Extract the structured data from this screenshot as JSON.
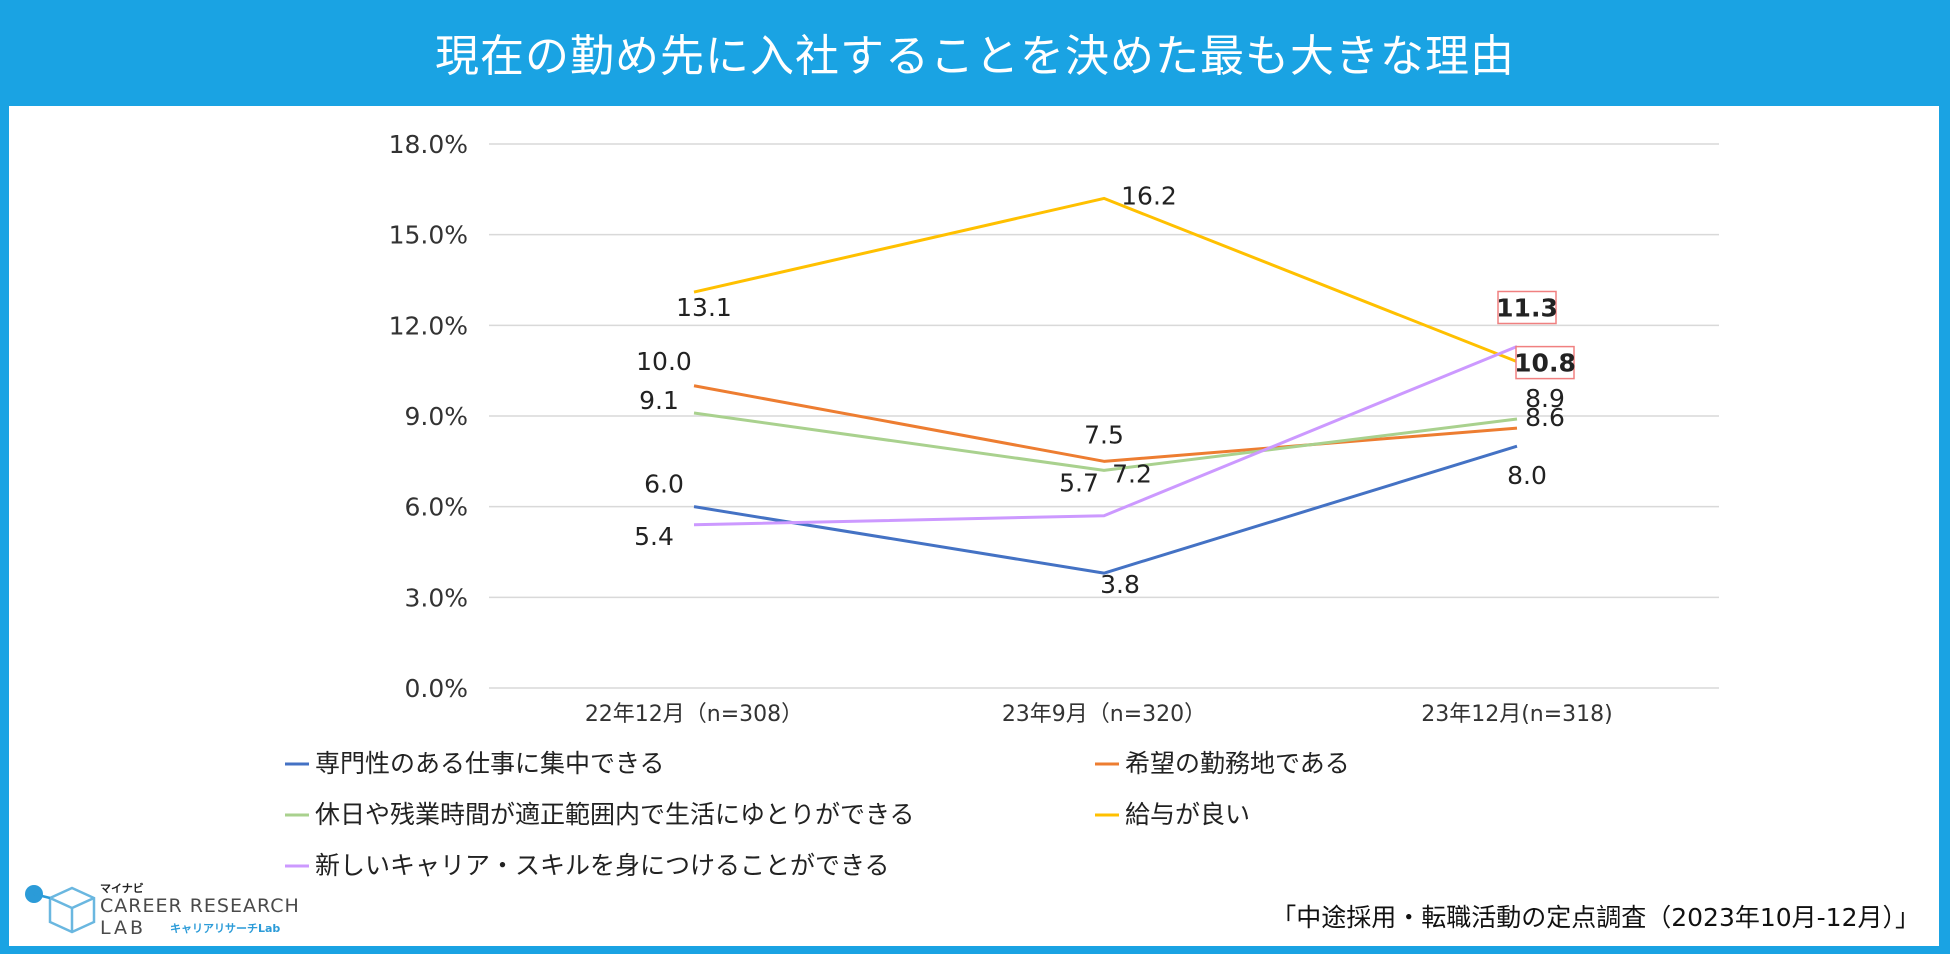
{
  "title": "現在の勤め先に入社することを決めた最も大きな理由",
  "source": "「中途採用・転職活動の定点調査（2023年10月-12月）」",
  "logo": {
    "top": "マイナビ",
    "line1": "CAREER RESEARCH",
    "line2": "LAB",
    "sub": "キャリアリサーチLab"
  },
  "chart_data": {
    "type": "line",
    "categories": [
      "22年12月（n=308）",
      "23年9月（n=320）",
      "23年12月(n=318)"
    ],
    "y_ticks": [
      "0.0%",
      "3.0%",
      "6.0%",
      "9.0%",
      "12.0%",
      "15.0%",
      "18.0%"
    ],
    "ylim": [
      0,
      18
    ],
    "series": [
      {
        "name": "専門性のある仕事に集中できる",
        "color": "#4472c4",
        "values": [
          6.0,
          3.8,
          8.0
        ],
        "labels": [
          "6.0",
          "3.8",
          "8.0"
        ]
      },
      {
        "name": "希望の勤務地である",
        "color": "#ed7d31",
        "values": [
          10.0,
          7.5,
          8.6
        ],
        "labels": [
          "10.0",
          "7.5",
          "8.6"
        ]
      },
      {
        "name": "休日や残業時間が適正範囲内で生活にゆとりができる",
        "color": "#a9d18e",
        "values": [
          9.1,
          7.2,
          8.9
        ],
        "labels": [
          "9.1",
          "7.2",
          "8.9"
        ]
      },
      {
        "name": "給与が良い",
        "color": "#ffc000",
        "values": [
          13.1,
          16.2,
          10.8
        ],
        "labels": [
          "13.1",
          "16.2",
          "10.8"
        ]
      },
      {
        "name": "新しいキャリア・スキルを身につけることができる",
        "color": "#cc99ff",
        "values": [
          5.4,
          5.7,
          11.3
        ],
        "labels": [
          "5.4",
          "5.7",
          "11.3"
        ]
      }
    ],
    "highlighted_labels": [
      "11.3",
      "10.8"
    ]
  }
}
